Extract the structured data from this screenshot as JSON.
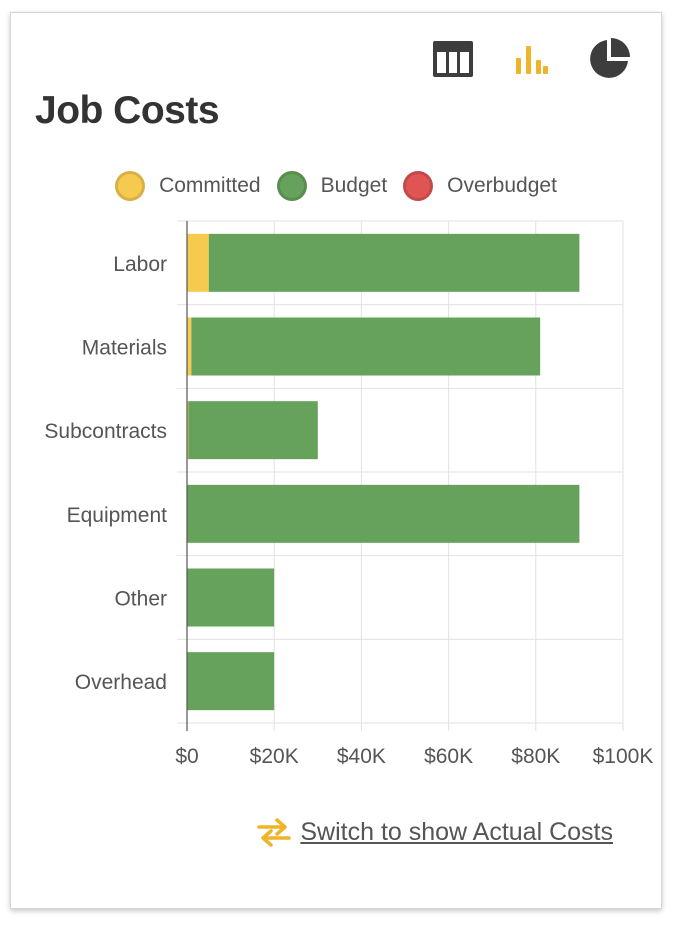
{
  "title": "Job Costs",
  "toolbar": {
    "table_icon": "table-icon",
    "bar_icon": "bar-chart-icon",
    "pie_icon": "pie-chart-icon",
    "active": "bar"
  },
  "legend": [
    {
      "label": "Committed",
      "color": "#f6c94f"
    },
    {
      "label": "Budget",
      "color": "#66a25c"
    },
    {
      "label": "Overbudget",
      "color": "#e05454"
    }
  ],
  "switch": {
    "icon": "swap-arrows-icon",
    "label": "Switch to show Actual Costs"
  },
  "colors": {
    "accent": "#f0b429",
    "committed": "#f6c94f",
    "budget": "#66a25c",
    "overbudget": "#e05454"
  },
  "chart_data": {
    "type": "bar",
    "orientation": "horizontal",
    "stacked": true,
    "categories": [
      "Labor",
      "Materials",
      "Subcontracts",
      "Equipment",
      "Other",
      "Overhead"
    ],
    "series": [
      {
        "name": "Committed",
        "values": [
          5000,
          1000,
          300,
          0,
          0,
          0
        ]
      },
      {
        "name": "Budget",
        "values": [
          85000,
          80000,
          29700,
          90000,
          20000,
          20000
        ]
      },
      {
        "name": "Overbudget",
        "values": [
          0,
          0,
          0,
          0,
          0,
          0
        ]
      }
    ],
    "xlim": [
      0,
      100000
    ],
    "xticks": [
      0,
      20000,
      40000,
      60000,
      80000,
      100000
    ],
    "xtick_labels": [
      "$0",
      "$20K",
      "$40K",
      "$60K",
      "$80K",
      "$100K"
    ],
    "grid": true,
    "legend_position": "top"
  }
}
